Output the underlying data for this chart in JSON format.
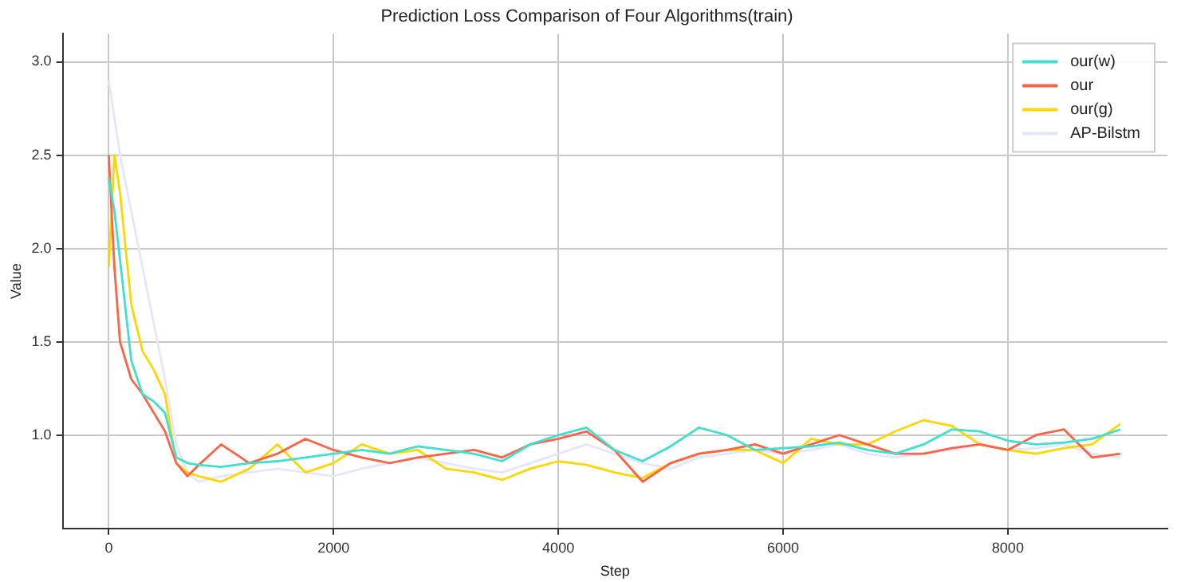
{
  "chart_data": {
    "type": "line",
    "title": "Prediction Loss Comparison of Four Algorithms(train)",
    "xlabel": "Step",
    "ylabel": "Value",
    "x": [
      0,
      50,
      100,
      200,
      300,
      400,
      500,
      600,
      700,
      800,
      1000,
      1250,
      1500,
      1750,
      2000,
      2250,
      2500,
      2750,
      3000,
      3250,
      3500,
      3750,
      4000,
      4250,
      4500,
      4750,
      5000,
      5250,
      5500,
      5750,
      6000,
      6250,
      6500,
      6750,
      7000,
      7250,
      7500,
      7750,
      8000,
      8250,
      8500,
      8750,
      9000
    ],
    "series": [
      {
        "name": "our(w)",
        "color": "#40e0d0",
        "values": [
          2.38,
          2.2,
          1.94,
          1.4,
          1.22,
          1.18,
          1.12,
          0.88,
          0.85,
          0.84,
          0.83,
          0.85,
          0.86,
          0.88,
          0.9,
          0.92,
          0.9,
          0.94,
          0.92,
          0.9,
          0.86,
          0.95,
          1.0,
          1.04,
          0.92,
          0.86,
          0.94,
          1.04,
          1.0,
          0.92,
          0.93,
          0.94,
          0.96,
          0.92,
          0.9,
          0.95,
          1.03,
          1.02,
          0.97,
          0.95,
          0.96,
          0.98,
          1.03
        ]
      },
      {
        "name": "our",
        "color": "#ff6347",
        "values": [
          2.5,
          1.9,
          1.5,
          1.3,
          1.22,
          1.12,
          1.02,
          0.85,
          0.78,
          0.84,
          0.95,
          0.85,
          0.9,
          0.98,
          0.92,
          0.88,
          0.85,
          0.88,
          0.9,
          0.92,
          0.88,
          0.95,
          0.98,
          1.02,
          0.92,
          0.75,
          0.85,
          0.9,
          0.92,
          0.95,
          0.9,
          0.95,
          1.0,
          0.95,
          0.9,
          0.9,
          0.93,
          0.95,
          0.92,
          1.0,
          1.03,
          0.88,
          0.9
        ]
      },
      {
        "name": "our(g)",
        "color": "#ffd700",
        "values": [
          1.9,
          2.5,
          2.3,
          1.7,
          1.45,
          1.35,
          1.22,
          0.85,
          0.8,
          0.78,
          0.75,
          0.82,
          0.95,
          0.8,
          0.85,
          0.95,
          0.9,
          0.92,
          0.82,
          0.8,
          0.76,
          0.82,
          0.86,
          0.84,
          0.8,
          0.77,
          0.85,
          0.9,
          0.92,
          0.92,
          0.85,
          0.98,
          0.95,
          0.95,
          1.02,
          1.08,
          1.05,
          0.95,
          0.92,
          0.9,
          0.93,
          0.95,
          1.06
        ]
      },
      {
        "name": "AP-Bilstm",
        "color": "#e6e6fa",
        "values": [
          2.9,
          2.7,
          2.5,
          2.2,
          1.9,
          1.6,
          1.3,
          0.95,
          0.8,
          0.75,
          0.78,
          0.8,
          0.82,
          0.8,
          0.78,
          0.82,
          0.85,
          0.88,
          0.85,
          0.82,
          0.8,
          0.85,
          0.9,
          0.95,
          0.9,
          0.85,
          0.82,
          0.88,
          0.9,
          0.92,
          0.9,
          0.92,
          0.95,
          0.9,
          0.88,
          0.9,
          0.92,
          0.95,
          0.92,
          0.93,
          0.95,
          0.9,
          0.88
        ]
      }
    ],
    "xlim": [
      -410,
      9420
    ],
    "xticks": [
      0,
      2000,
      4000,
      6000,
      8000
    ],
    "ylim": [
      0.5,
      3.15
    ],
    "yticks": [
      {
        "value": 1,
        "label": "1.0"
      },
      1.5,
      {
        "value": 2,
        "label": "2.0"
      },
      2.5,
      {
        "value": 3,
        "label": "3.0"
      }
    ],
    "grid": true,
    "legend": "top right",
    "line_style": "solid",
    "marker": "none"
  }
}
